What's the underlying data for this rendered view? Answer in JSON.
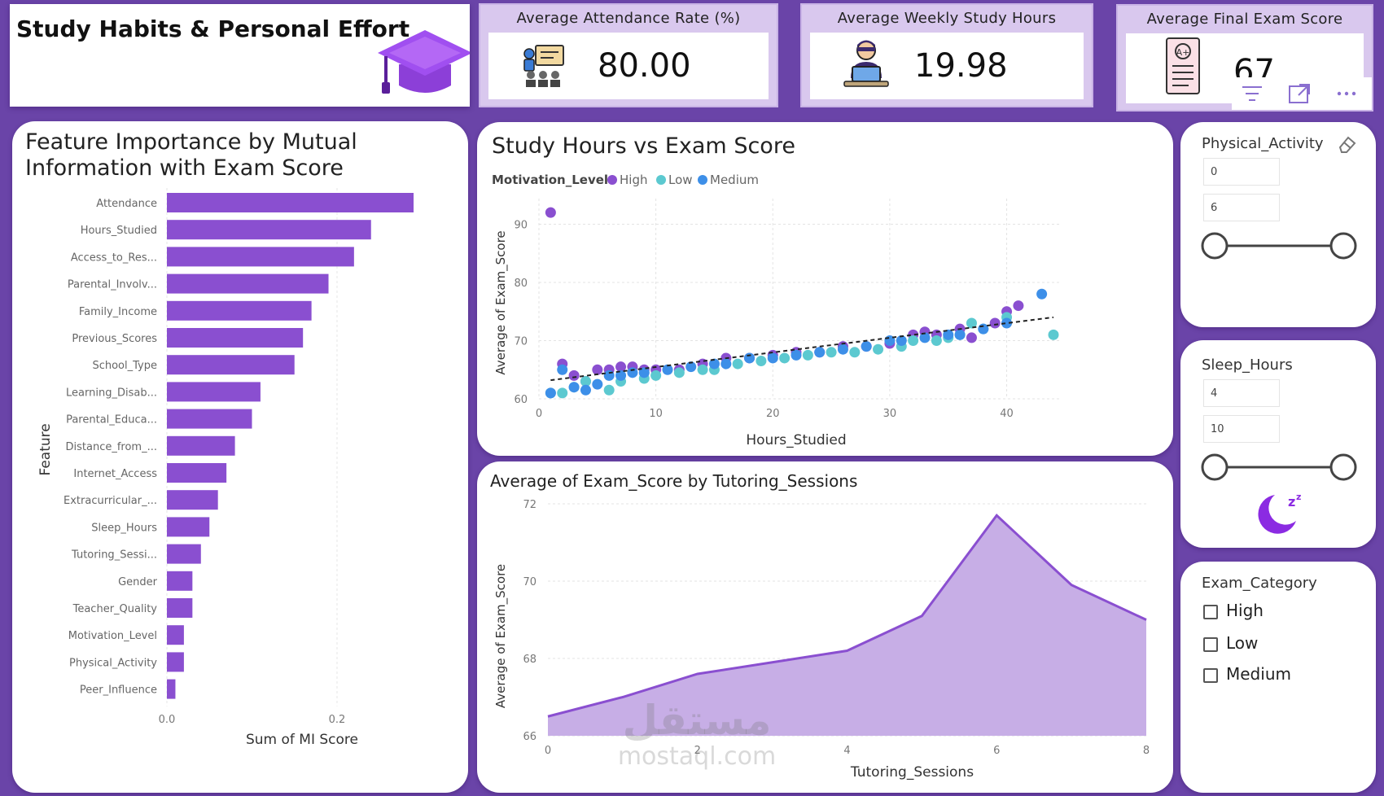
{
  "header": {
    "title": "Study Habits & Personal Effort"
  },
  "kpis": [
    {
      "label": "Average Attendance Rate (%)",
      "value": "80.00",
      "icon": "teacher-classroom-icon"
    },
    {
      "label": "Average Weekly Study Hours",
      "value": "19.98",
      "icon": "student-laptop-icon"
    },
    {
      "label": "Average Final Exam Score",
      "value": "67",
      "icon": "exam-paper-icon"
    }
  ],
  "visual_header_icons": [
    "filter-icon",
    "focus-mode-icon",
    "more-options-icon"
  ],
  "colors": {
    "accent": "#8a4fd0",
    "high": "#8a4fd0",
    "low": "#5cc9d0",
    "medium": "#3d8fe8",
    "background": "#6a44a8",
    "area_fill": "#c7aee6"
  },
  "chart_data": [
    {
      "type": "bar",
      "orientation": "horizontal",
      "title": "Feature Importance by Mutual Information with Exam Score",
      "xlabel": "Sum of MI Score",
      "ylabel": "Feature",
      "xlim": [
        0,
        0.29
      ],
      "xticks": [
        "0.0",
        "0.2"
      ],
      "grid": true,
      "categories": [
        "Attendance",
        "Hours_Studied",
        "Access_to_Res...",
        "Parental_Involv...",
        "Family_Income",
        "Previous_Scores",
        "School_Type",
        "Learning_Disab...",
        "Parental_Educa...",
        "Distance_from_...",
        "Internet_Access",
        "Extracurricular_...",
        "Sleep_Hours",
        "Tutoring_Sessi...",
        "Gender",
        "Teacher_Quality",
        "Motivation_Level",
        "Physical_Activity",
        "Peer_Influence"
      ],
      "values": [
        0.29,
        0.24,
        0.22,
        0.19,
        0.17,
        0.16,
        0.15,
        0.11,
        0.1,
        0.08,
        0.07,
        0.06,
        0.05,
        0.04,
        0.03,
        0.03,
        0.02,
        0.02,
        0.01
      ]
    },
    {
      "type": "scatter",
      "title": "Study Hours vs Exam Score",
      "legend_title": "Motivation_Level",
      "legend_position": "top-left",
      "xlabel": "Hours_Studied",
      "ylabel": "Average of Exam_Score",
      "xlim": [
        0,
        44
      ],
      "ylim": [
        60,
        93
      ],
      "xticks": [
        0,
        10,
        20,
        30,
        40
      ],
      "yticks": [
        60,
        70,
        80,
        90
      ],
      "trendline": {
        "x": [
          1,
          44
        ],
        "y": [
          63.2,
          74.0
        ]
      },
      "series": [
        {
          "name": "High",
          "points": [
            [
              1,
              92
            ],
            [
              2,
              66
            ],
            [
              3,
              64
            ],
            [
              4,
              63
            ],
            [
              5,
              65
            ],
            [
              6,
              65
            ],
            [
              7,
              65.5
            ],
            [
              8,
              65.5
            ],
            [
              9,
              65
            ],
            [
              10,
              65
            ],
            [
              12,
              65
            ],
            [
              14,
              66
            ],
            [
              16,
              67
            ],
            [
              18,
              67
            ],
            [
              20,
              67.5
            ],
            [
              22,
              68
            ],
            [
              24,
              68
            ],
            [
              26,
              69
            ],
            [
              28,
              69
            ],
            [
              30,
              69.5
            ],
            [
              32,
              71
            ],
            [
              33,
              71.5
            ],
            [
              34,
              71
            ],
            [
              36,
              72
            ],
            [
              37,
              70.5
            ],
            [
              39,
              73
            ],
            [
              40,
              75
            ],
            [
              41,
              76
            ]
          ]
        },
        {
          "name": "Low",
          "points": [
            [
              1,
              61
            ],
            [
              2,
              61
            ],
            [
              3,
              62
            ],
            [
              4,
              63
            ],
            [
              6,
              61.5
            ],
            [
              7,
              63
            ],
            [
              9,
              63.5
            ],
            [
              10,
              64
            ],
            [
              12,
              64.5
            ],
            [
              14,
              65
            ],
            [
              15,
              65
            ],
            [
              17,
              66
            ],
            [
              19,
              66.5
            ],
            [
              21,
              67
            ],
            [
              23,
              67.5
            ],
            [
              25,
              68
            ],
            [
              27,
              68
            ],
            [
              29,
              68.5
            ],
            [
              31,
              69
            ],
            [
              32,
              70
            ],
            [
              34,
              70
            ],
            [
              35,
              70.5
            ],
            [
              36,
              71
            ],
            [
              37,
              73
            ],
            [
              38,
              72
            ],
            [
              40,
              74
            ],
            [
              44,
              71
            ]
          ]
        },
        {
          "name": "Medium",
          "points": [
            [
              1,
              61
            ],
            [
              2,
              65
            ],
            [
              3,
              62
            ],
            [
              4,
              61.5
            ],
            [
              5,
              62.5
            ],
            [
              6,
              64
            ],
            [
              7,
              64
            ],
            [
              8,
              64.5
            ],
            [
              9,
              64.5
            ],
            [
              11,
              65
            ],
            [
              13,
              65.5
            ],
            [
              15,
              66
            ],
            [
              16,
              66
            ],
            [
              18,
              67
            ],
            [
              20,
              67
            ],
            [
              22,
              67.5
            ],
            [
              24,
              68
            ],
            [
              26,
              68.5
            ],
            [
              28,
              69
            ],
            [
              30,
              70
            ],
            [
              31,
              70
            ],
            [
              33,
              70.5
            ],
            [
              35,
              71
            ],
            [
              36,
              71
            ],
            [
              38,
              72
            ],
            [
              40,
              73
            ],
            [
              43,
              78
            ]
          ]
        }
      ]
    },
    {
      "type": "area",
      "title": "Average of Exam_Score by Tutoring_Sessions",
      "xlabel": "Tutoring_Sessions",
      "ylabel": "Average of Exam_Score",
      "xlim": [
        0,
        8
      ],
      "ylim": [
        66,
        72
      ],
      "xticks": [
        0,
        2,
        4,
        6,
        8
      ],
      "yticks": [
        66,
        68,
        70,
        72
      ],
      "x": [
        0,
        1,
        2,
        3,
        4,
        5,
        6,
        7,
        8
      ],
      "y": [
        66.5,
        67.0,
        67.6,
        67.9,
        68.2,
        69.1,
        71.7,
        69.9,
        69.0
      ]
    }
  ],
  "slicers": {
    "physical_activity": {
      "label": "Physical_Activity",
      "min": "0",
      "max": "6",
      "icon": "eraser-icon"
    },
    "sleep_hours": {
      "label": "Sleep_Hours",
      "min": "4",
      "max": "10",
      "icon": "sleep-moon-icon"
    },
    "exam_category": {
      "label": "Exam_Category",
      "options": [
        "High",
        "Low",
        "Medium"
      ]
    }
  },
  "watermark": {
    "arabic": "مستقل",
    "latin": "mostaql.com"
  }
}
